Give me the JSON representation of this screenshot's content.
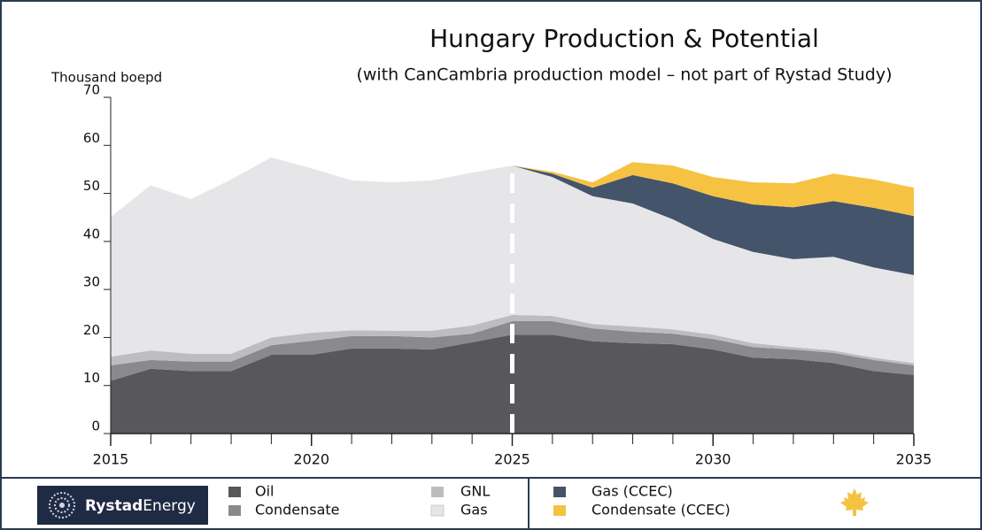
{
  "chart_data": {
    "type": "stacked_area",
    "title": "Hungary Production & Potential",
    "subtitle": "(with CanCambria production model – not part of Rystad Study)",
    "y_label": "Thousand boepd",
    "x": [
      2015,
      2016,
      2017,
      2018,
      2019,
      2020,
      2021,
      2022,
      2023,
      2024,
      2025,
      2026,
      2027,
      2028,
      2029,
      2030,
      2031,
      2032,
      2033,
      2034,
      2035
    ],
    "series": [
      {
        "name": "Oil",
        "color": "#58585a",
        "values": [
          11,
          13.5,
          13,
          13,
          16.4,
          16.4,
          17.7,
          17.7,
          17.5,
          19,
          20.6,
          20.6,
          19.2,
          18.8,
          18.6,
          17.5,
          15.8,
          15.5,
          14.7,
          13,
          12.2
        ]
      },
      {
        "name": "Condensate",
        "color": "#8a8a8c",
        "values": [
          3.2,
          1.8,
          2,
          2,
          2,
          2.9,
          2.6,
          2.6,
          2.5,
          1.8,
          2.8,
          2.8,
          2.7,
          2.4,
          2.2,
          2.2,
          2.2,
          2,
          2.1,
          2.3,
          2
        ]
      },
      {
        "name": "GNL",
        "color": "#bdbdbf",
        "values": [
          1.8,
          2,
          1.6,
          1.6,
          1.6,
          1.7,
          1.2,
          1.1,
          1.4,
          1.7,
          1.3,
          1.1,
          0.9,
          1.1,
          0.9,
          0.9,
          0.8,
          0.5,
          0.5,
          0.5,
          0.5
        ]
      },
      {
        "name": "Gas",
        "color": "#e6e6e8",
        "values": [
          29.1,
          34.4,
          32.2,
          36.3,
          37.5,
          34.2,
          31.2,
          30.9,
          31.3,
          31.8,
          31.1,
          28.9,
          26.6,
          25.6,
          22.9,
          19.9,
          19,
          18.3,
          19.5,
          18.8,
          18.3
        ]
      },
      {
        "name": "Gas (CCEC)",
        "color": "#44546a",
        "values": [
          null,
          null,
          null,
          null,
          null,
          null,
          null,
          null,
          null,
          null,
          0,
          0.7,
          1.8,
          5.9,
          7.5,
          8.9,
          9.9,
          10.8,
          11.6,
          12.4,
          12.3
        ]
      },
      {
        "name": "Condensate (CCEC)",
        "color": "#f5c242",
        "values": [
          null,
          null,
          null,
          null,
          null,
          null,
          null,
          null,
          null,
          null,
          0,
          0.4,
          1.1,
          2.7,
          3.7,
          4,
          4.6,
          5,
          5.7,
          5.9,
          5.9
        ]
      }
    ],
    "xlim": [
      2015,
      2035
    ],
    "xticks": [
      2015,
      2020,
      2025,
      2030,
      2035
    ],
    "ylim": [
      0,
      70
    ],
    "yticks": [
      0,
      10,
      20,
      30,
      40,
      50,
      60,
      70
    ],
    "vline": 2025
  },
  "logo": {
    "bold": "Rystad",
    "light": "Energy"
  }
}
